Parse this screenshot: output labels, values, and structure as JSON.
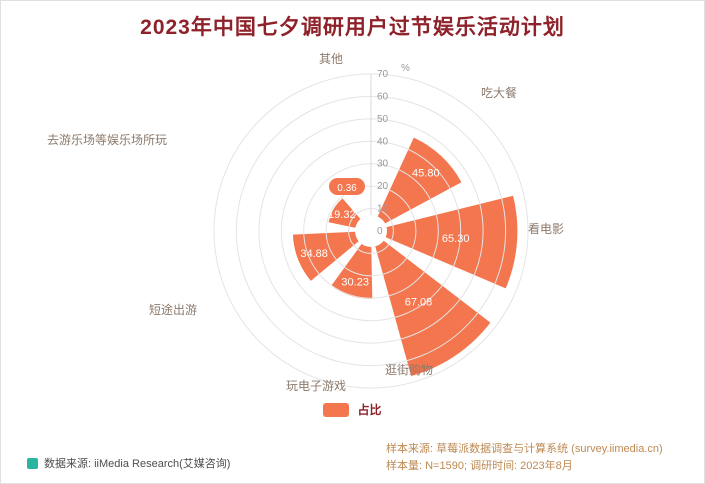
{
  "title": "2023年中国七夕调研用户过节娱乐活动计划",
  "legend": {
    "label": "占比"
  },
  "footer": {
    "left": "数据来源: iiMedia Research(艾媒咨询)",
    "right_line1": "样本来源: 草莓派数据调查与计算系统 (survey.iimedia.cn)",
    "right_line2": "样本量: N=1590; 调研时间: 2023年8月"
  },
  "colors": {
    "bar": "#f4764e",
    "title": "#8e2129",
    "legend_text": "#8e2129",
    "category_label": "#8c7a6b",
    "axis_label": "#999999",
    "grid": "#e4e4e4",
    "axis_line": "#d9d9d9",
    "value_label": "#ffffff",
    "footer_left": "#4d4d4d",
    "footer_right": "#bd8a52",
    "logo": "#2ab5a0"
  },
  "chart_data": {
    "type": "bar",
    "subtype": "polar-bar",
    "title": "2023年中国七夕调研用户过节娱乐活动计划",
    "series_name": "占比",
    "categories": [
      "其他",
      "吃大餐",
      "看电影",
      "逛街购物",
      "玩电子游戏",
      "短途出游",
      "去游乐场等娱乐场所玩"
    ],
    "values": [
      0.36,
      45.8,
      65.3,
      67.08,
      30.23,
      34.88,
      19.32
    ],
    "value_labels": [
      "0.36",
      "45.80",
      "65.30",
      "67.08",
      "30.23",
      "34.88",
      "19.32"
    ],
    "radial_axis": {
      "min": 0,
      "max": 70,
      "interval": 10,
      "unit": "%",
      "ticks": [
        "0",
        "10",
        "20",
        "30",
        "40",
        "50",
        "60",
        "70"
      ]
    },
    "start_angle_deg": 124,
    "clockwise": true,
    "grid": true,
    "legend_position": "bottom"
  }
}
